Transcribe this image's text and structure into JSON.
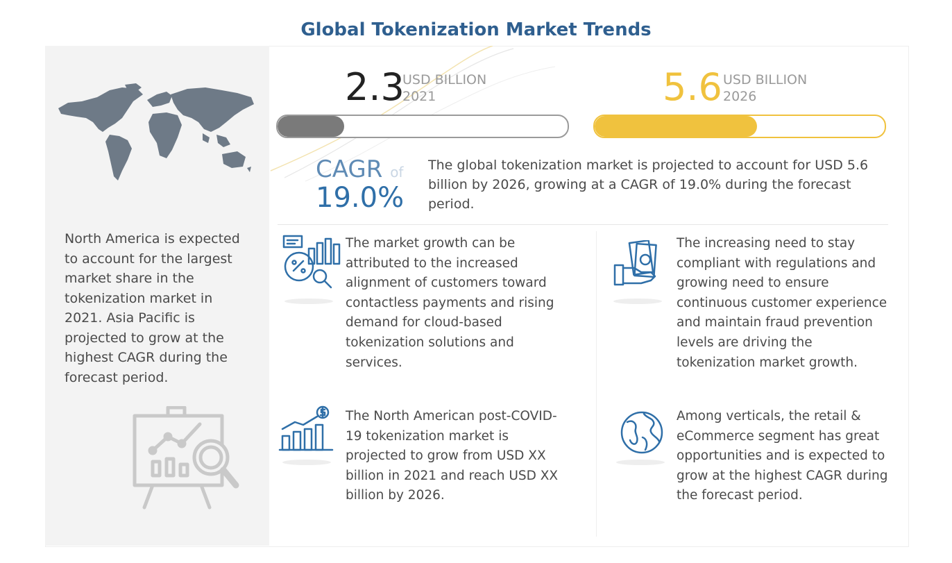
{
  "title": "Global Tokenization Market Trends",
  "left": {
    "text": "North America is expected to account for the largest market share in the tokenization market in 2021. Asia Pacific is projected to grow at the highest CAGR during the forecast period."
  },
  "market_2021": {
    "value": "2.3",
    "unit": "USD BILLION",
    "year": "2021",
    "bar_fill_fraction": 0.23,
    "color": "#7a7a7a"
  },
  "market_2026": {
    "value": "5.6",
    "unit": "USD BILLION",
    "year": "2026",
    "bar_fill_fraction": 0.56,
    "color": "#f0c23e"
  },
  "cagr": {
    "label": "CAGR",
    "of": "of",
    "value": "19.0%"
  },
  "summary": "The global tokenization market is projected to account for USD 5.6 billion by 2026, growing at a CAGR of 19.0% during the forecast period.",
  "points": [
    {
      "icon": "analytics-chart-icon",
      "text": "The market growth can be attributed to the increased alignment of customers toward contactless payments and rising demand for cloud-based tokenization solutions and services."
    },
    {
      "icon": "money-hand-icon",
      "text": "The increasing need to stay compliant with regulations and growing need to ensure continuous customer experience and maintain fraud prevention levels are driving the tokenization market growth."
    },
    {
      "icon": "growth-bars-dollar-icon",
      "text": "The North American post-COVID-19 tokenization market is projected to grow from USD XX billion in 2021 and reach USD XX billion by 2026."
    },
    {
      "icon": "globe-icon",
      "text": "Among verticals, the retail & eCommerce segment has great opportunities and is expected to grow at the highest CAGR during the forecast period."
    }
  ],
  "colors": {
    "title": "#2f5f8f",
    "accent_blue": "#2f6fa8",
    "accent_yellow": "#f0c23e",
    "panel": "#f3f3f3"
  }
}
